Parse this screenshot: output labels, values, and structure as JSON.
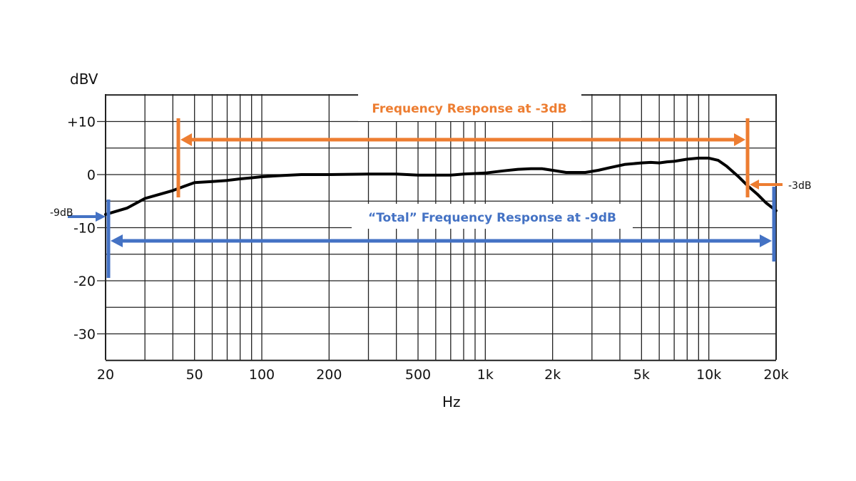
{
  "chart_data": {
    "type": "line",
    "title": "",
    "xlabel": "Hz",
    "ylabel": "dBV",
    "xscale": "log",
    "xlim": [
      20,
      20000
    ],
    "ylim": [
      -35,
      15
    ],
    "grid": true,
    "x_tick_labels": [
      "20",
      "50",
      "100",
      "200",
      "500",
      "1k",
      "2k",
      "5k",
      "10k",
      "20k"
    ],
    "x_tick_values": [
      20,
      50,
      100,
      200,
      500,
      1000,
      2000,
      5000,
      10000,
      20000
    ],
    "y_tick_labels": [
      "+10",
      "0",
      "-10",
      "-20",
      "-30"
    ],
    "y_tick_values": [
      10,
      0,
      -10,
      -20,
      -30
    ],
    "series": [
      {
        "name": "Frequency response",
        "color": "#000000",
        "x": [
          20,
          22,
          25,
          30,
          35,
          40,
          45,
          50,
          60,
          70,
          80,
          90,
          100,
          120,
          150,
          200,
          300,
          400,
          500,
          600,
          700,
          800,
          900,
          1000,
          1200,
          1400,
          1600,
          1800,
          2000,
          2300,
          2800,
          3200,
          3600,
          4200,
          5000,
          5500,
          6000,
          6500,
          7000,
          8000,
          9000,
          10000,
          11000,
          12000,
          13500,
          15000,
          16500,
          18000,
          20000
        ],
        "y": [
          -7.5,
          -7.0,
          -6.3,
          -4.5,
          -3.7,
          -3.0,
          -2.2,
          -1.5,
          -1.3,
          -1.1,
          -0.8,
          -0.6,
          -0.4,
          -0.2,
          0.0,
          0.0,
          0.1,
          0.1,
          -0.1,
          -0.1,
          -0.1,
          0.1,
          0.2,
          0.3,
          0.7,
          1.0,
          1.1,
          1.1,
          0.8,
          0.4,
          0.4,
          0.8,
          1.3,
          1.9,
          2.2,
          2.3,
          2.2,
          2.4,
          2.5,
          2.9,
          3.1,
          3.1,
          2.7,
          1.6,
          -0.3,
          -2.2,
          -3.7,
          -5.3,
          -6.8
        ]
      }
    ],
    "annotations": [
      {
        "text": "Frequency Response at -3dB",
        "color": "#ed7d31",
        "type": "double-arrow",
        "from_hz": 42,
        "to_hz": 15000,
        "y_db": 6.7
      },
      {
        "text": "“Total” Frequency Response at -9dB",
        "color": "#4472c4",
        "type": "double-arrow",
        "from_hz": 20,
        "to_hz": 20000,
        "y_db": -12.6
      },
      {
        "text": "-3dB",
        "color": "#ed7d31",
        "type": "marker-arrow"
      },
      {
        "text": "-9dB",
        "color": "#4472c4",
        "type": "marker-arrow"
      }
    ]
  },
  "labels": {
    "ylabel": "dBV",
    "xlabel": "Hz",
    "orange_title": "Frequency Response at -3dB",
    "blue_title": "“Total” Frequency Response at -9dB",
    "minus3": "-3dB",
    "minus9": "-9dB"
  },
  "colors": {
    "orange": "#ed7d31",
    "blue": "#4472c4",
    "grid": "#222222",
    "curve": "#000000"
  }
}
